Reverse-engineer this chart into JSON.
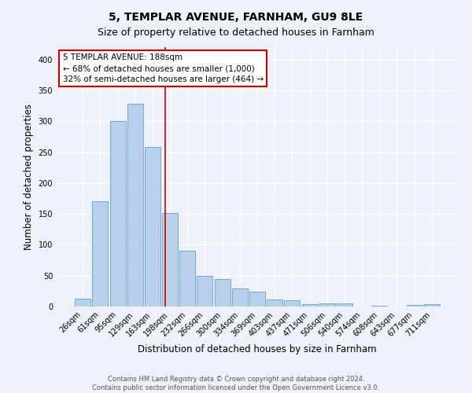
{
  "title": "5, TEMPLAR AVENUE, FARNHAM, GU9 8LE",
  "subtitle": "Size of property relative to detached houses in Farnham",
  "xlabel": "Distribution of detached houses by size in Farnham",
  "ylabel": "Number of detached properties",
  "footer_line1": "Contains HM Land Registry data © Crown copyright and database right 2024.",
  "footer_line2": "Contains public sector information licensed under the Open Government Licence v3.0.",
  "categories": [
    "26sqm",
    "61sqm",
    "95sqm",
    "129sqm",
    "163sqm",
    "198sqm",
    "232sqm",
    "266sqm",
    "300sqm",
    "334sqm",
    "369sqm",
    "403sqm",
    "437sqm",
    "471sqm",
    "506sqm",
    "540sqm",
    "574sqm",
    "608sqm",
    "643sqm",
    "677sqm",
    "711sqm"
  ],
  "values": [
    13,
    170,
    300,
    328,
    258,
    152,
    91,
    50,
    44,
    29,
    24,
    11,
    10,
    4,
    5,
    5,
    0,
    1,
    0,
    3,
    4
  ],
  "bar_color": "#b8d0ea",
  "bar_edge_color": "#6aaad4",
  "bg_color": "#eef2f8",
  "grid_color": "#ffffff",
  "vline_x": 4.72,
  "vline_color": "#cc0000",
  "annotation_line1": "5 TEMPLAR AVENUE: 188sqm",
  "annotation_line2": "← 68% of detached houses are smaller (1,000)",
  "annotation_line3": "32% of semi-detached houses are larger (464) →",
  "annotation_box_color": "#ffffff",
  "annotation_box_edge": "#cc0000",
  "ylim": [
    0,
    420
  ],
  "yticks": [
    0,
    50,
    100,
    150,
    200,
    250,
    300,
    350,
    400
  ],
  "title_fontsize": 10,
  "subtitle_fontsize": 9,
  "annotation_fontsize": 7.5,
  "tick_fontsize": 7,
  "label_fontsize": 8.5,
  "footer_fontsize": 6
}
